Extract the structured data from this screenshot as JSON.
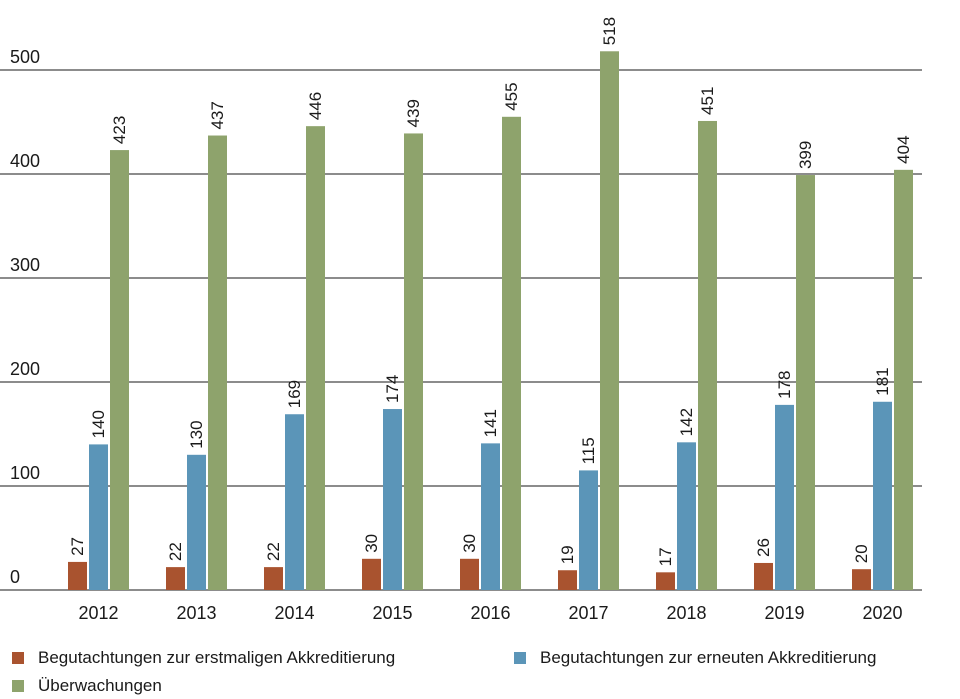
{
  "chart_data": {
    "type": "bar",
    "categories": [
      "2012",
      "2013",
      "2014",
      "2015",
      "2016",
      "2017",
      "2018",
      "2019",
      "2020"
    ],
    "series": [
      {
        "name": "Begutachtungen zur erstmaligen Akkreditierung",
        "color": "#a9532f",
        "values": [
          27,
          22,
          22,
          30,
          30,
          19,
          17,
          26,
          20
        ]
      },
      {
        "name": "Begutachtungen zur erneuten Akkreditierung",
        "color": "#5b95b8",
        "values": [
          140,
          130,
          169,
          174,
          141,
          115,
          142,
          178,
          181
        ]
      },
      {
        "name": "Überwachungen",
        "color": "#8ea36c",
        "values": [
          423,
          437,
          446,
          439,
          455,
          518,
          451,
          399,
          404
        ]
      }
    ],
    "yticks": [
      0,
      100,
      200,
      300,
      400,
      500
    ],
    "ylim": [
      0,
      520
    ],
    "grid": true,
    "legend_position": "bottom",
    "title": "",
    "xlabel": "",
    "ylabel": ""
  }
}
